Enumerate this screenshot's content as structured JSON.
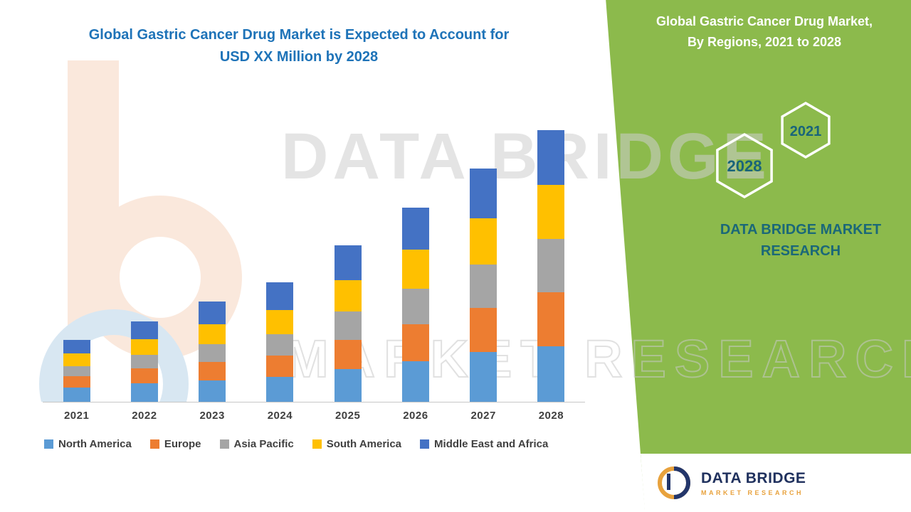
{
  "chart_title": {
    "line1": "Global Gastric Cancer Drug Market is Expected to Account for",
    "line2": "USD XX Million by 2028"
  },
  "green_panel": {
    "title_line1": "Global Gastric Cancer Drug Market,",
    "title_line2": "By Regions, 2021 to 2028",
    "hexagons": [
      {
        "label": "2028"
      },
      {
        "label": "2021"
      }
    ],
    "brand_line1": "DATA BRIDGE MARKET",
    "brand_line2": "RESEARCH"
  },
  "watermark": {
    "line1": "DATA BRIDGE",
    "line2": "MARKET RESEARCH"
  },
  "footer_logo": {
    "brand": "DATA BRIDGE",
    "sub": "MARKET RESEARCH"
  },
  "colors": {
    "title_blue": "#1E73B8",
    "green_panel": "#8CBA4C",
    "green_panel_accent_text": "#1B6878",
    "axis_label": "#3F3F3F"
  },
  "chart_data": {
    "type": "bar",
    "stacked": true,
    "title": "Global Gastric Cancer Drug Market, By Regions, 2021 to 2028",
    "xlabel": "",
    "ylabel": "",
    "units": "USD Million (values shown as XX, not disclosed; series values are relative estimates)",
    "ylim": [
      0,
      400
    ],
    "grid": false,
    "legend_position": "bottom",
    "categories": [
      "2021",
      "2022",
      "2023",
      "2024",
      "2025",
      "2026",
      "2027",
      "2028"
    ],
    "series": [
      {
        "name": "North America",
        "color": "#5B9BD5",
        "values": [
          20,
          26,
          30,
          35,
          46,
          57,
          70,
          78
        ]
      },
      {
        "name": "Europe",
        "color": "#ED7D31",
        "values": [
          16,
          21,
          26,
          30,
          41,
          52,
          62,
          76
        ]
      },
      {
        "name": "Asia Pacific",
        "color": "#A5A5A5",
        "values": [
          14,
          19,
          25,
          30,
          40,
          50,
          61,
          75
        ]
      },
      {
        "name": "South America",
        "color": "#FFC000",
        "values": [
          18,
          22,
          28,
          34,
          44,
          55,
          65,
          76
        ]
      },
      {
        "name": "Middle East and Africa",
        "color": "#4472C4",
        "values": [
          19,
          25,
          32,
          39,
          49,
          59,
          70,
          77
        ]
      }
    ]
  }
}
